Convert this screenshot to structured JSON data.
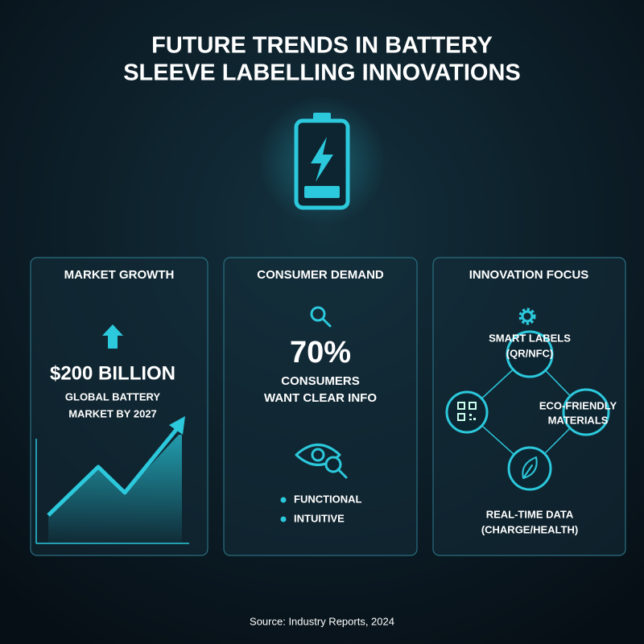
{
  "header": {
    "title_lines": [
      "FUTURE TRENDS IN BATTERY",
      "SLEEVE LABELLING INNOVATIONS"
    ]
  },
  "panels": [
    {
      "title": "MARKET GROWTH",
      "headline": "$200 BILLION",
      "caption_lines": [
        "GLOBAL BATTERY",
        "MARKET BY 2027"
      ]
    },
    {
      "title": "CONSUMER DEMAND",
      "headline": "70%",
      "caption_lines": [
        "CONSUMERS",
        "WANT CLEAR INFO"
      ],
      "bullets": [
        "FUNCTIONAL",
        "INTUITIVE"
      ]
    },
    {
      "title": "INNOVATION FOCUS",
      "nodes": [
        {
          "label_lines": [
            "SMART LABELS",
            "(QR/NFC)"
          ]
        },
        {
          "label_lines": [
            "ECO-FRIENDLY",
            "MATERIALS"
          ]
        },
        {
          "label_lines": [
            "REAL-TIME DATA",
            "(CHARGE/HEALTH)"
          ]
        }
      ]
    }
  ],
  "footer": {
    "source": "Source: Industry Reports, 2024"
  }
}
